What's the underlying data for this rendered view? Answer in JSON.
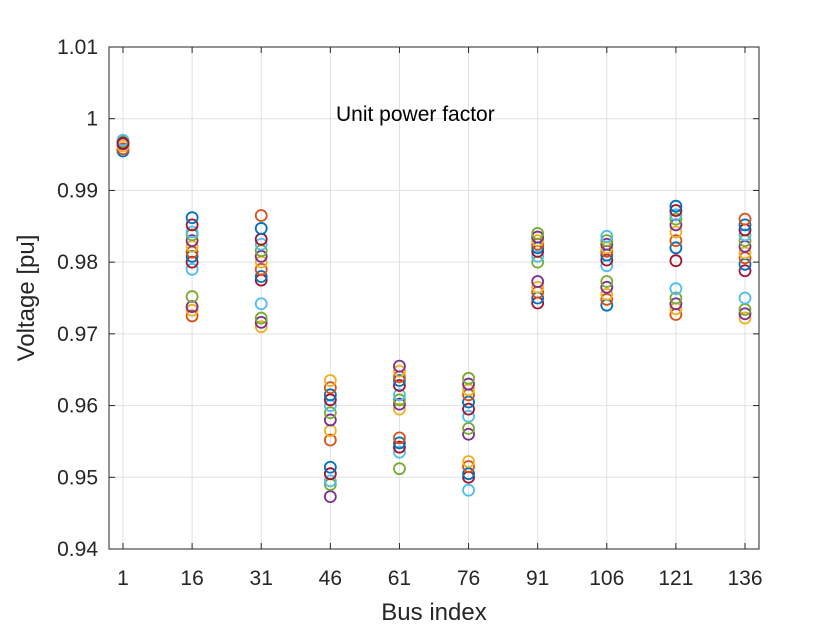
{
  "chart_data": {
    "type": "scatter",
    "title": "",
    "annotation": "Unit power factor",
    "xlabel": "Bus index",
    "ylabel": "Voltage [pu]",
    "x_ticks": [
      "1",
      "16",
      "31",
      "46",
      "61",
      "76",
      "91",
      "106",
      "121",
      "136"
    ],
    "y_ticks": [
      "0.94",
      "0.95",
      "0.96",
      "0.97",
      "0.98",
      "0.99",
      "1",
      "1.01"
    ],
    "ylim": [
      0.94,
      1.01
    ],
    "grid": true,
    "marker": "open-circle",
    "series_colors": [
      "#0072BD",
      "#D95319",
      "#EDB120",
      "#7E2F8E",
      "#77AC30",
      "#4DBEEE",
      "#A2142F"
    ],
    "points": [
      {
        "x": 1,
        "y": [
          0.9955,
          0.9958,
          0.9962,
          0.9965,
          0.9968,
          0.997,
          0.9966
        ]
      },
      {
        "x": 16,
        "y": [
          0.9725,
          0.9733,
          0.9738,
          0.9752,
          0.979,
          0.98,
          0.9808,
          0.9814,
          0.9822,
          0.983,
          0.9838,
          0.9842,
          0.9852,
          0.9862
        ]
      },
      {
        "x": 31,
        "y": [
          0.971,
          0.9716,
          0.9722,
          0.9742,
          0.9775,
          0.978,
          0.979,
          0.98,
          0.9808,
          0.9816,
          0.9825,
          0.9832,
          0.9847,
          0.9865
        ]
      },
      {
        "x": 46,
        "y": [
          0.9473,
          0.949,
          0.9495,
          0.9505,
          0.9514,
          0.9552,
          0.9565,
          0.958,
          0.959,
          0.96,
          0.9608,
          0.9615,
          0.9625,
          0.9635
        ]
      },
      {
        "x": 61,
        "y": [
          0.9512,
          0.9535,
          0.9542,
          0.9548,
          0.9555,
          0.9595,
          0.9602,
          0.9608,
          0.9615,
          0.9628,
          0.9635,
          0.964,
          0.9648,
          0.9655
        ]
      },
      {
        "x": 76,
        "y": [
          0.9482,
          0.95,
          0.9505,
          0.9515,
          0.9522,
          0.956,
          0.9568,
          0.9585,
          0.9595,
          0.9605,
          0.9615,
          0.9622,
          0.963,
          0.9638
        ]
      },
      {
        "x": 91,
        "y": [
          0.9743,
          0.975,
          0.9758,
          0.9765,
          0.9773,
          0.98,
          0.9808,
          0.9815,
          0.982,
          0.9825,
          0.983,
          0.9835,
          0.984
        ]
      },
      {
        "x": 106,
        "y": [
          0.974,
          0.9748,
          0.9755,
          0.9765,
          0.9773,
          0.9795,
          0.9803,
          0.981,
          0.9815,
          0.982,
          0.9825,
          0.983,
          0.9836
        ]
      },
      {
        "x": 121,
        "y": [
          0.9727,
          0.9735,
          0.9742,
          0.975,
          0.9763,
          0.9802,
          0.982,
          0.983,
          0.9842,
          0.9852,
          0.986,
          0.9866,
          0.9872,
          0.9878
        ]
      },
      {
        "x": 136,
        "y": [
          0.9722,
          0.9728,
          0.9734,
          0.975,
          0.9788,
          0.9797,
          0.9806,
          0.9813,
          0.9822,
          0.983,
          0.9838,
          0.9845,
          0.9852,
          0.986
        ]
      }
    ]
  }
}
